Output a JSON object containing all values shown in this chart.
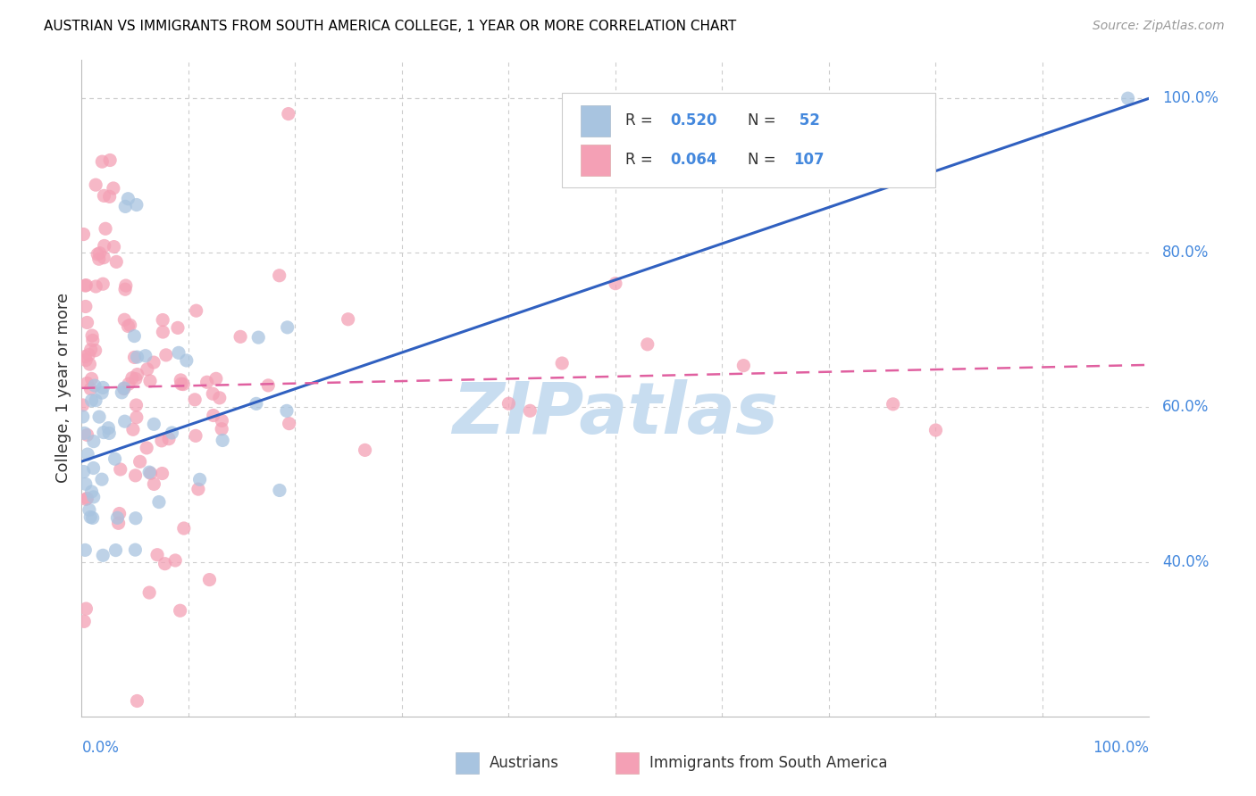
{
  "title": "AUSTRIAN VS IMMIGRANTS FROM SOUTH AMERICA COLLEGE, 1 YEAR OR MORE CORRELATION CHART",
  "source": "Source: ZipAtlas.com",
  "ylabel": "College, 1 year or more",
  "color_austrian": "#a8c4e0",
  "color_sa": "#f4a0b5",
  "line_color_austrian": "#3060c0",
  "line_color_sa": "#e060a0",
  "background_color": "#ffffff",
  "grid_color": "#cccccc",
  "label_color": "#4488dd",
  "watermark_color": "#c8ddf0",
  "legend_box_color": "#eeeeee",
  "austrian_line_x0": 0.0,
  "austrian_line_y0": 0.53,
  "austrian_line_x1": 1.0,
  "austrian_line_y1": 1.0,
  "sa_line_x0": 0.0,
  "sa_line_y0": 0.625,
  "sa_line_x1": 1.0,
  "sa_line_y1": 0.655,
  "xlim": [
    0.0,
    1.0
  ],
  "ylim": [
    0.2,
    1.05
  ],
  "ytick_vals": [
    0.4,
    0.6,
    0.8,
    1.0
  ],
  "ytick_labels": [
    "40.0%",
    "60.0%",
    "80.0%",
    "100.0%"
  ]
}
